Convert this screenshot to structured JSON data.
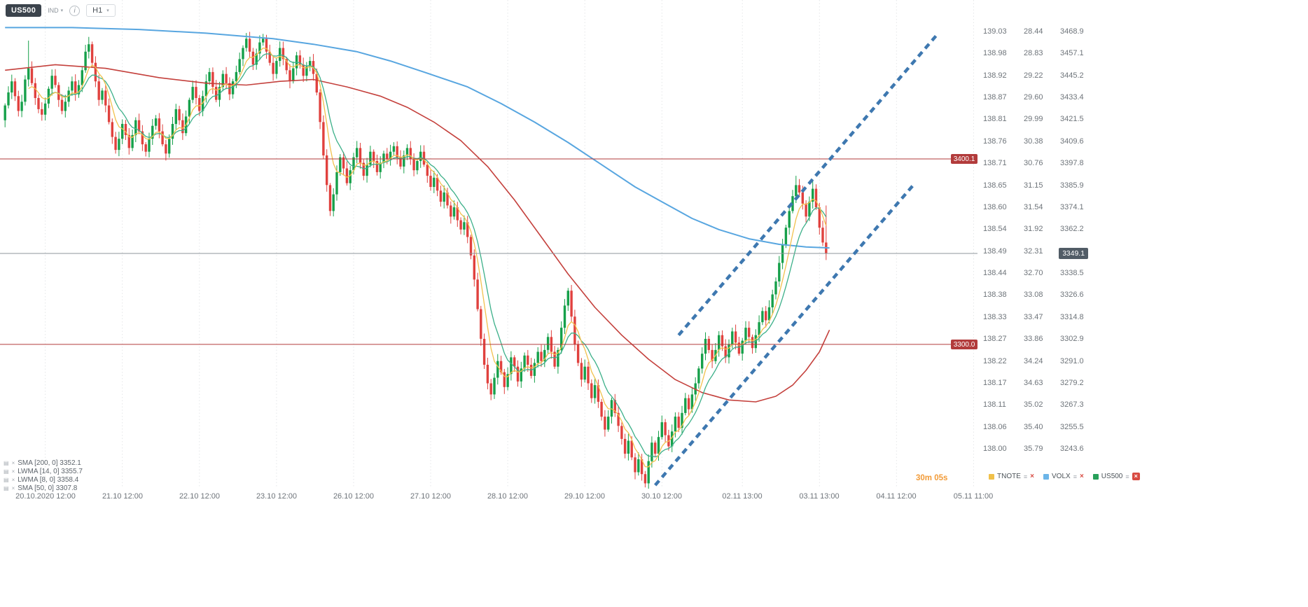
{
  "toolbar": {
    "symbol": "US500",
    "instrument_type": "IND",
    "timeframe": "H1"
  },
  "indicator_legend": [
    {
      "label": "SMA  [200, 0] 3352.1"
    },
    {
      "label": "LWMA  [14, 0] 3355.7"
    },
    {
      "label": "LWMA  [8, 0] 3358.4"
    },
    {
      "label": "SMA  [50, 0] 3307.8"
    }
  ],
  "footer": {
    "timer": "30m 05s",
    "instruments": [
      {
        "name": "TNOTE",
        "color": "#f0c04a",
        "close_badge": false
      },
      {
        "name": "VOLX",
        "color": "#6cb5e8",
        "close_badge": false
      },
      {
        "name": "US500",
        "color": "#27a05a",
        "close_badge": true
      }
    ]
  },
  "price_scale": {
    "rows": [
      [
        "139.03",
        "28.44",
        "3468.9"
      ],
      [
        "138.98",
        "28.83",
        "3457.1"
      ],
      [
        "138.92",
        "29.22",
        "3445.2"
      ],
      [
        "138.87",
        "29.60",
        "3433.4"
      ],
      [
        "138.81",
        "29.99",
        "3421.5"
      ],
      [
        "138.76",
        "30.38",
        "3409.6"
      ],
      [
        "138.71",
        "30.76",
        "3397.8"
      ],
      [
        "138.65",
        "31.15",
        "3385.9"
      ],
      [
        "138.60",
        "31.54",
        "3374.1"
      ],
      [
        "138.54",
        "31.92",
        "3362.2"
      ],
      [
        "138.49",
        "32.31",
        ""
      ],
      [
        "138.44",
        "32.70",
        "3338.5"
      ],
      [
        "138.38",
        "33.08",
        "3326.6"
      ],
      [
        "138.33",
        "33.47",
        "3314.8"
      ],
      [
        "138.27",
        "33.86",
        "3302.9"
      ],
      [
        "138.22",
        "34.24",
        "3291.0"
      ],
      [
        "138.17",
        "34.63",
        "3279.2"
      ],
      [
        "138.11",
        "35.02",
        "3267.3"
      ],
      [
        "138.06",
        "35.40",
        "3255.5"
      ],
      [
        "138.00",
        "35.79",
        "3243.6"
      ]
    ]
  },
  "time_axis": {
    "labels": [
      {
        "text": "20.10.2020 12:00",
        "bar": 12
      },
      {
        "text": "21.10 12:00",
        "bar": 35
      },
      {
        "text": "22.10 12:00",
        "bar": 58
      },
      {
        "text": "23.10 12:00",
        "bar": 81
      },
      {
        "text": "26.10 12:00",
        "bar": 104
      },
      {
        "text": "27.10 12:00",
        "bar": 127
      },
      {
        "text": "28.10 12:00",
        "bar": 150
      },
      {
        "text": "29.10 12:00",
        "bar": 173
      },
      {
        "text": "30.10 12:00",
        "bar": 196
      },
      {
        "text": "02.11 13:00",
        "bar": 220
      },
      {
        "text": "03.11 13:00",
        "bar": 243
      },
      {
        "text": "04.11 12:00",
        "bar": 266
      },
      {
        "text": "05.11 11:00",
        "bar": 289
      }
    ]
  },
  "chart_data": {
    "type": "candlestick",
    "symbol": "US500",
    "timeframe": "H1",
    "xlim": [
      -1,
      291.5
    ],
    "ylim": [
      3222.5,
      3485.9
    ],
    "scale_first": 3468.9,
    "scale_step": 11.857,
    "up_color": "#16a04a",
    "down_color": "#e0413e",
    "trendline_color": "#3e78b0",
    "open_first": 3421,
    "closes": [
      3429,
      3436,
      3442,
      3434,
      3426,
      3431,
      3443,
      3449,
      3441,
      3433,
      3427,
      3424,
      3430,
      3438,
      3445,
      3440,
      3432,
      3426,
      3431,
      3437,
      3442,
      3435,
      3440,
      3448,
      3458,
      3462,
      3452,
      3442,
      3432,
      3437,
      3429,
      3420,
      3412,
      3405,
      3411,
      3419,
      3413,
      3406,
      3413,
      3421,
      3415,
      3408,
      3404,
      3411,
      3418,
      3422,
      3415,
      3408,
      3403,
      3411,
      3419,
      3427,
      3421,
      3414,
      3423,
      3432,
      3439,
      3433,
      3426,
      3434,
      3442,
      3447,
      3439,
      3432,
      3439,
      3446,
      3441,
      3435,
      3442,
      3447,
      3454,
      3460,
      3465,
      3458,
      3451,
      3457,
      3463,
      3465,
      3458,
      3452,
      3446,
      3453,
      3460,
      3454,
      3448,
      3442,
      3449,
      3456,
      3451,
      3445,
      3450,
      3453,
      3446,
      3436,
      3420,
      3402,
      3386,
      3372,
      3381,
      3393,
      3401,
      3395,
      3387,
      3394,
      3401,
      3406,
      3398,
      3391,
      3397,
      3404,
      3399,
      3393,
      3398,
      3403,
      3400,
      3404,
      3407,
      3401,
      3396,
      3402,
      3406,
      3400,
      3394,
      3399,
      3404,
      3397,
      3391,
      3385,
      3390,
      3383,
      3377,
      3382,
      3375,
      3369,
      3374,
      3367,
      3362,
      3366,
      3358,
      3348,
      3335,
      3319,
      3303,
      3289,
      3279,
      3273,
      3282,
      3291,
      3285,
      3277,
      3284,
      3293,
      3288,
      3280,
      3287,
      3294,
      3289,
      3283,
      3290,
      3296,
      3291,
      3297,
      3304,
      3296,
      3288,
      3297,
      3309,
      3321,
      3329,
      3315,
      3300,
      3290,
      3281,
      3288,
      3279,
      3271,
      3278,
      3269,
      3261,
      3254,
      3261,
      3270,
      3263,
      3256,
      3249,
      3241,
      3248,
      3239,
      3231,
      3238,
      3230,
      3225,
      3237,
      3247,
      3241,
      3250,
      3258,
      3251,
      3245,
      3253,
      3261,
      3255,
      3263,
      3271,
      3265,
      3273,
      3279,
      3287,
      3295,
      3303,
      3297,
      3291,
      3297,
      3305,
      3299,
      3293,
      3300,
      3307,
      3301,
      3295,
      3302,
      3309,
      3304,
      3298,
      3305,
      3312,
      3318,
      3313,
      3320,
      3327,
      3334,
      3344,
      3354,
      3363,
      3372,
      3380,
      3386,
      3382,
      3376,
      3369,
      3377,
      3384,
      3374,
      3363,
      3355,
      3349
    ],
    "wick_overrides": {
      "7": {
        "high": 3464
      },
      "25": {
        "high": 3466
      },
      "191": {
        "low": 3222.8
      },
      "236": {
        "high": 3391
      },
      "241": {
        "high": 3389
      },
      "245": {
        "high": 3375
      }
    },
    "overlays": [
      {
        "name": "SMA 200",
        "color": "#58a6e0",
        "width": 2,
        "points": [
          [
            0,
            3471
          ],
          [
            20,
            3471
          ],
          [
            40,
            3470
          ],
          [
            60,
            3468
          ],
          [
            80,
            3465
          ],
          [
            92,
            3462
          ],
          [
            105,
            3458
          ],
          [
            115,
            3453
          ],
          [
            125,
            3447
          ],
          [
            138,
            3439
          ],
          [
            148,
            3430
          ],
          [
            158,
            3420
          ],
          [
            168,
            3409
          ],
          [
            178,
            3397
          ],
          [
            188,
            3385
          ],
          [
            196,
            3377
          ],
          [
            205,
            3368
          ],
          [
            213,
            3362
          ],
          [
            222,
            3357
          ],
          [
            231,
            3354
          ],
          [
            239,
            3352.6
          ],
          [
            246,
            3352.1
          ]
        ]
      },
      {
        "name": "SMA 50",
        "color": "#c4403c",
        "width": 1.6,
        "points": [
          [
            0,
            3448
          ],
          [
            15,
            3451
          ],
          [
            30,
            3449
          ],
          [
            46,
            3444
          ],
          [
            60,
            3441
          ],
          [
            72,
            3440
          ],
          [
            82,
            3442
          ],
          [
            92,
            3443
          ],
          [
            102,
            3439
          ],
          [
            112,
            3434
          ],
          [
            120,
            3428
          ],
          [
            128,
            3420
          ],
          [
            136,
            3410
          ],
          [
            144,
            3396
          ],
          [
            152,
            3378
          ],
          [
            160,
            3358
          ],
          [
            168,
            3338
          ],
          [
            176,
            3320
          ],
          [
            184,
            3305
          ],
          [
            192,
            3292
          ],
          [
            200,
            3281
          ],
          [
            208,
            3274
          ],
          [
            216,
            3270
          ],
          [
            224,
            3269
          ],
          [
            230,
            3272
          ],
          [
            235,
            3278
          ],
          [
            239,
            3286
          ],
          [
            243,
            3296
          ],
          [
            246,
            3307.8
          ]
        ]
      },
      {
        "name": "LWMA 14",
        "color": "#3cb089",
        "width": 1.3,
        "derive": "lwma",
        "window": 14
      },
      {
        "name": "LWMA 8",
        "color": "#f2c14e",
        "width": 1.3,
        "derive": "lwma",
        "window": 8
      }
    ],
    "trendlines": [
      {
        "from": [
          201,
          3305
        ],
        "to": [
          278,
          3467
        ]
      },
      {
        "from": [
          194,
          3224
        ],
        "to": [
          271,
          3386
        ]
      }
    ],
    "hlines": [
      {
        "price": 3400.1,
        "label": "3400.1",
        "color": "#b23b3b"
      },
      {
        "price": 3300.0,
        "label": "3300.0",
        "color": "#b23b3b"
      }
    ],
    "current_price": {
      "value": "3349.1",
      "price": 3349.1
    }
  }
}
